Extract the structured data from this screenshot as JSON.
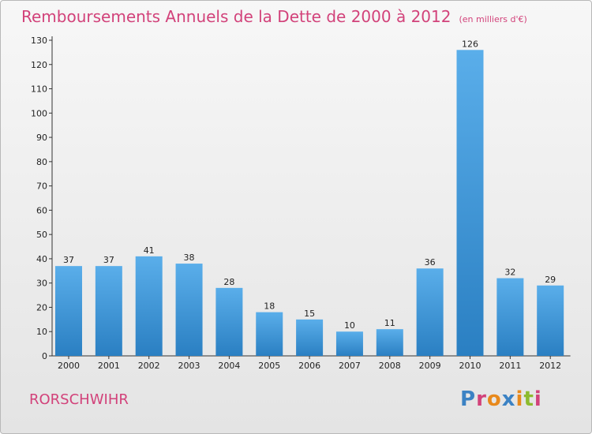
{
  "title": "Remboursements Annuels de la Dette de 2000 à 2012",
  "unit": "(en milliers d'€)",
  "commune": "RORSCHWIHR",
  "logo": "Proxiti",
  "colors": {
    "title": "#d2427a",
    "bar_light": "#5aaeea",
    "bar_dark": "#2a7fc2"
  },
  "chart_data": {
    "type": "bar",
    "title": "Remboursements Annuels de la Dette de 2000 à 2012",
    "xlabel": "",
    "ylabel": "",
    "categories": [
      "2000",
      "2001",
      "2002",
      "2003",
      "2004",
      "2005",
      "2006",
      "2007",
      "2008",
      "2009",
      "2010",
      "2011",
      "2012"
    ],
    "values": [
      37,
      37,
      41,
      38,
      28,
      18,
      15,
      10,
      11,
      36,
      126,
      32,
      29
    ],
    "ylim": [
      0,
      130
    ],
    "yticks": [
      0,
      10,
      20,
      30,
      40,
      50,
      60,
      70,
      80,
      90,
      100,
      110,
      120,
      130
    ],
    "grid": false,
    "legend": "none"
  }
}
